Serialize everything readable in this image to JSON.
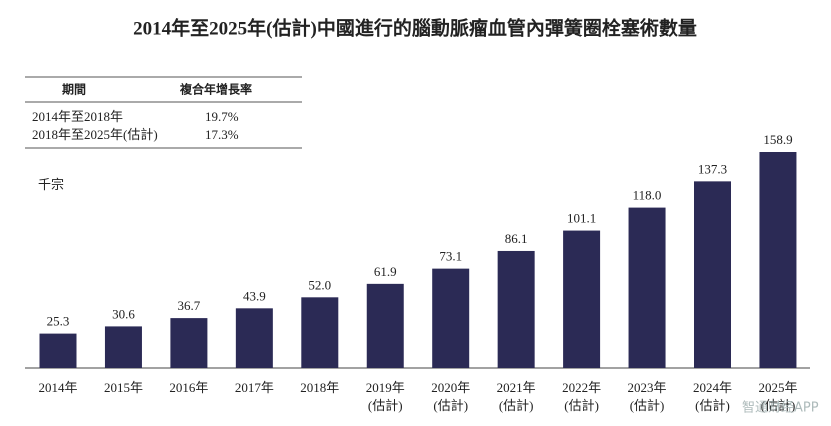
{
  "chart_data": {
    "type": "bar",
    "title": "2014年至2025年(估計)中國進行的腦動脈瘤血管內彈簧圈栓塞術數量",
    "unit_label": "千宗",
    "table": {
      "header": [
        "期間",
        "複合年增長率"
      ],
      "rows": [
        [
          "2014年至2018年",
          "19.7%"
        ],
        [
          "2018年至2025年(估計)",
          "17.3%"
        ]
      ]
    },
    "categories": [
      [
        "2014年"
      ],
      [
        "2015年"
      ],
      [
        "2016年"
      ],
      [
        "2017年"
      ],
      [
        "2018年"
      ],
      [
        "2019年",
        "(估計)"
      ],
      [
        "2020年",
        "(估計)"
      ],
      [
        "2021年",
        "(估計)"
      ],
      [
        "2022年",
        "(估計)"
      ],
      [
        "2023年",
        "(估計)"
      ],
      [
        "2024年",
        "(估計)"
      ],
      [
        "2025年",
        "(估計)"
      ]
    ],
    "values": [
      25.3,
      30.6,
      36.7,
      43.9,
      52.0,
      61.9,
      73.1,
      86.1,
      101.1,
      118.0,
      137.3,
      158.9
    ],
    "value_labels": [
      "25.3",
      "30.6",
      "36.7",
      "43.9",
      "52.0",
      "61.9",
      "73.1",
      "86.1",
      "101.1",
      "118.0",
      "137.3",
      "158.9"
    ],
    "color": "#2b2a55",
    "watermark": "智通财经APP"
  }
}
